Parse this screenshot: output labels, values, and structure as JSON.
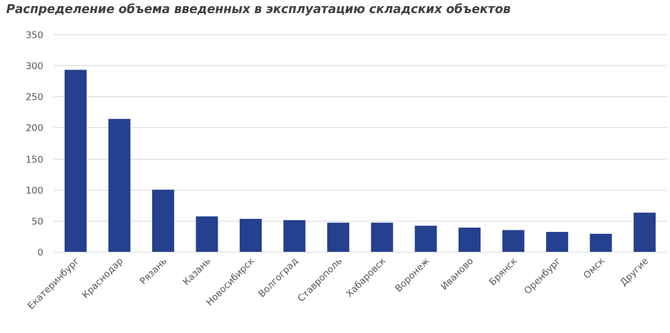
{
  "chart_data": {
    "type": "bar",
    "title": "Распределение объема введенных в эксплуатацию складских объектов",
    "categories": [
      "Екатеринбург",
      "Краснодар",
      "Рязань",
      "Казань",
      "Новосибирск",
      "Волгоград",
      "Ставрополь",
      "Хабаровск",
      "Воронеж",
      "Иваново",
      "Брянск",
      "Оренбург",
      "Омск",
      "Другие"
    ],
    "values": [
      293,
      214,
      100,
      57,
      53,
      51,
      47,
      47,
      42,
      39,
      35,
      32,
      29,
      63
    ],
    "ylim": [
      0,
      350
    ],
    "yticks": [
      0,
      50,
      100,
      150,
      200,
      250,
      300,
      350
    ],
    "xlabel": "",
    "ylabel": "",
    "grid": true,
    "legend": "none",
    "bar_color": "#24408E",
    "grid_color": "#D9D9D9"
  }
}
